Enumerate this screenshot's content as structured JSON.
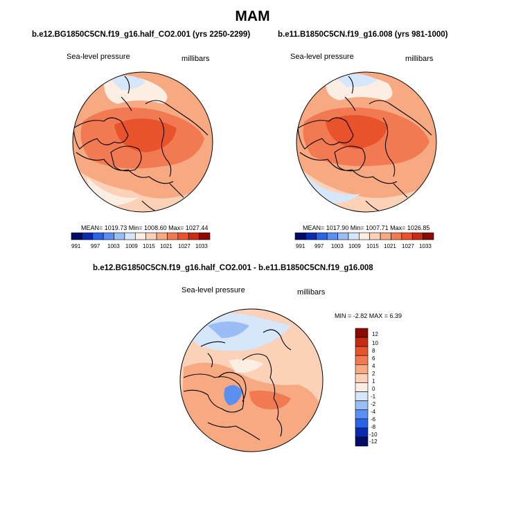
{
  "page": {
    "title": "MAM"
  },
  "colors": {
    "h0": "#020c64",
    "h1": "#0a2bb0",
    "h2": "#2a63e6",
    "h3": "#5b8ff2",
    "h4": "#9bbdf6",
    "h5": "#d6e6fb",
    "h6": "#fdeee4",
    "h7": "#fbd1b8",
    "h8": "#f7a982",
    "h9": "#f27a52",
    "h10": "#e8532c",
    "h11": "#c72b10",
    "h12": "#8b0b00",
    "land": "#000000",
    "border": "#000000"
  },
  "chart_data": [
    {
      "type": "heatmap",
      "projection": "north-polar-stereographic",
      "title": "b.e12.BG1850C5CN.f19_g16.half_CO2.001 (yrs 2250-2299)",
      "left_label": "Sea-level pressure",
      "right_label": "millibars",
      "stats": {
        "mean": "1019.73",
        "min": "1008.60",
        "max": "1027.44",
        "text": "MEAN= 1019.73   Min= 1008.60   Max= 1027.44"
      },
      "levels": [
        "991",
        "997",
        "1003",
        "1009",
        "1015",
        "1021",
        "1027",
        "1033"
      ],
      "colorbar_orientation": "horizontal"
    },
    {
      "type": "heatmap",
      "projection": "north-polar-stereographic",
      "title": "b.e11.B1850C5CN.f19_g16.008 (yrs 981-1000)",
      "left_label": "Sea-level pressure",
      "right_label": "millibars",
      "stats": {
        "mean": "1017.90",
        "min": "1007.71",
        "max": "1026.85",
        "text": "MEAN= 1017.90   Min= 1007.71   Max= 1026.85"
      },
      "levels": [
        "991",
        "997",
        "1003",
        "1009",
        "1015",
        "1021",
        "1027",
        "1033"
      ],
      "colorbar_orientation": "horizontal"
    },
    {
      "type": "heatmap",
      "projection": "north-polar-stereographic",
      "title": "b.e12.BG1850C5CN.f19_g16.half_CO2.001 - b.e11.B1850C5CN.f19_g16.008",
      "left_label": "Sea-level pressure",
      "right_label": "millibars",
      "stats": {
        "min": "-2.82",
        "max": "6.39",
        "text": "MIN =  -2.82 MAX =   6.39"
      },
      "levels": [
        "12",
        "10",
        "8",
        "6",
        "4",
        "2",
        "1",
        "0",
        "-1",
        "-2",
        "-4",
        "-6",
        "-8",
        "-10",
        "-12"
      ],
      "colorbar_orientation": "vertical"
    }
  ]
}
